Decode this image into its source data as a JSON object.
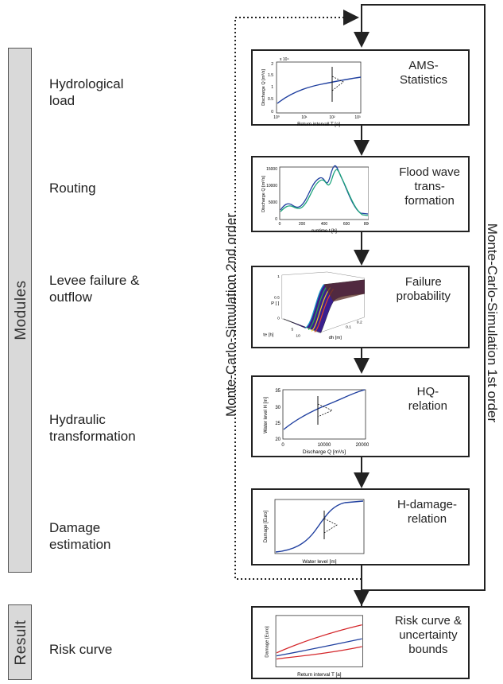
{
  "sidebar": {
    "modules_label": "Modules",
    "result_label": "Result"
  },
  "stages": [
    {
      "label": "Hydrological\nload"
    },
    {
      "label": "Routing"
    },
    {
      "label": "Levee failure &\noutflow"
    },
    {
      "label": "Hydraulic\ntransformation"
    },
    {
      "label": "Damage\nestimation"
    },
    {
      "label": "Risk curve"
    }
  ],
  "boxes": [
    {
      "label": "AMS-\nStatistics",
      "ylabel": "Discharge Q [m³/s]",
      "xlabel": "Return intervall T [a]"
    },
    {
      "label": "Flood wave\ntrans-\nformation",
      "ylabel": "Discharge Q [m³/s]",
      "xlabel": "runtime t [h]"
    },
    {
      "label": "Failure\nprobability",
      "ylabel": "P [ ]",
      "xlabel": "dh [m]",
      "zlabel": "te [h]"
    },
    {
      "label": "HQ-\nrelation",
      "ylabel": "Water level H [m]",
      "xlabel": "Discharge Q [m³/s]"
    },
    {
      "label": "H-damage-\nrelation",
      "ylabel": "Damage [Euro]",
      "xlabel": "Water level [m]"
    },
    {
      "label": "Risk curve &\nuncertainty\nbounds",
      "ylabel": "Damage [Euro]",
      "xlabel": "Return interval T [a]"
    }
  ],
  "loops": {
    "outer": "Monte-Carlo-Simulation 1st order",
    "inner": "Monte-Carlo-Simulation 2nd order"
  },
  "ticks": {
    "ams_y": [
      "2",
      "1.5",
      "1",
      "0.5",
      "0"
    ],
    "ams_x": [
      "10⁰",
      "10¹",
      "10²",
      "10³"
    ],
    "ams_exp": "x 10⁴",
    "flood_y": [
      "15000",
      "10000",
      "5000",
      "0"
    ],
    "flood_x": [
      "0",
      "200",
      "400",
      "600",
      "800"
    ],
    "fail_z": [
      "1",
      "0.5",
      "0"
    ],
    "fail_te": [
      "5",
      "10"
    ],
    "fail_dh": [
      "0.1",
      "0.2"
    ],
    "hq_y": [
      "35",
      "30",
      "25",
      "20"
    ],
    "hq_x": [
      "0",
      "10000",
      "20000"
    ]
  },
  "colors": {
    "series_blue": "#1f3f9f",
    "series_green": "#1aa37a",
    "series_red": "#d4262a",
    "sidebar_fill": "#d9d9d9"
  }
}
